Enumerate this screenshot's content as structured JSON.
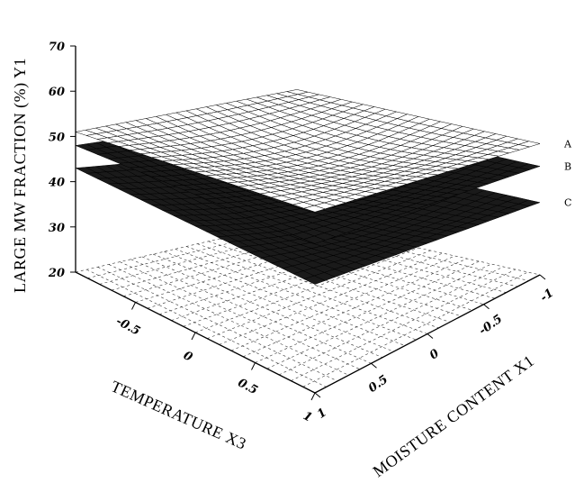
{
  "chart_data": {
    "type": "surface3d",
    "title": "",
    "zlabel": "LARGE MW FRACTION (%) Y1",
    "xlabel": "TEMPERATURE X3",
    "ylabel": "MOISTURE CONTENT X1",
    "zlim": [
      20,
      70
    ],
    "zticks": [
      "20",
      "30",
      "40",
      "50",
      "60",
      "70"
    ],
    "xticks": [
      "-0.5",
      "0",
      "0.5",
      "1"
    ],
    "yticks": [
      "1",
      "0.5",
      "0",
      "-0.5",
      "-1"
    ],
    "surfaces": [
      {
        "label": "A",
        "color": "#000000",
        "corners": {
          "x3_-1_x1_-1": 49,
          "x3_-1_x1_1": 51,
          "x3_1_x1_-1": 49,
          "x3_1_x1_1": 60
        }
      },
      {
        "label": "B",
        "color": "#000000",
        "corners": {
          "x3_-1_x1_-1": 44,
          "x3_-1_x1_1": 48,
          "x3_1_x1_-1": 44,
          "x3_1_x1_1": 53
        }
      },
      {
        "label": "C",
        "color": "#000000",
        "corners": {
          "x3_-1_x1_-1": 36,
          "x3_-1_x1_1": 43,
          "x3_1_x1_-1": 36,
          "x3_1_x1_1": 44
        }
      }
    ],
    "base_grid": "dashed",
    "grid": true
  }
}
